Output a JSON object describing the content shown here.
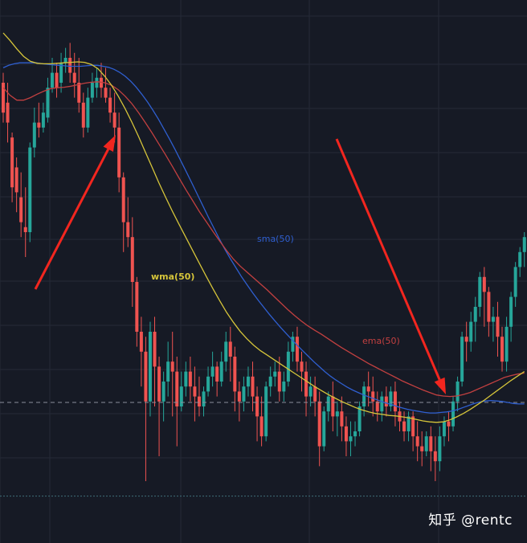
{
  "chart_data": {
    "type": "candlestick",
    "title": "",
    "xlabel": "",
    "ylabel": "",
    "ylim": [
      0,
      100
    ],
    "grid": true,
    "reference_line": 20.8,
    "bottom_line": 2.0,
    "colors": {
      "background": "#161a25",
      "grid": "#252a37",
      "up": "#26a69a",
      "down": "#ef5350",
      "sma": "#2f5fd0",
      "ema": "#c24040",
      "wma": "#d6c53a",
      "arrow": "#f2261f"
    },
    "candles": [
      [
        85,
        87,
        79,
        77
      ],
      [
        81,
        85,
        77,
        73
      ],
      [
        74,
        75,
        64,
        61
      ],
      [
        68,
        70,
        63,
        59
      ],
      [
        62,
        67,
        57,
        54
      ],
      [
        56,
        64,
        55,
        50
      ],
      [
        55,
        73,
        72,
        53
      ],
      [
        72,
        80,
        77,
        70
      ],
      [
        77,
        81,
        76,
        74
      ],
      [
        76,
        81,
        79,
        75
      ],
      [
        78,
        86,
        84,
        77
      ],
      [
        84,
        90,
        87,
        83
      ],
      [
        87,
        89,
        84,
        82
      ],
      [
        85,
        91,
        89,
        83
      ],
      [
        89,
        92,
        90,
        87
      ],
      [
        90,
        93,
        87,
        85
      ],
      [
        87,
        91,
        85,
        82
      ],
      [
        85,
        90,
        81,
        79
      ],
      [
        81,
        83,
        76,
        74
      ],
      [
        76,
        84,
        82,
        75
      ],
      [
        82,
        87,
        85,
        81
      ],
      [
        84,
        88,
        86,
        82
      ],
      [
        86,
        89,
        84,
        82
      ],
      [
        84,
        88,
        82,
        81
      ],
      [
        82,
        84,
        79,
        77
      ],
      [
        79,
        83,
        76,
        73
      ],
      [
        76,
        79,
        66,
        63
      ],
      [
        66,
        67,
        57,
        51
      ],
      [
        57,
        62,
        54,
        52
      ],
      [
        54,
        58,
        45,
        40
      ],
      [
        45,
        46,
        35,
        32
      ],
      [
        35,
        38,
        31,
        24
      ],
      [
        31,
        34,
        21,
        5
      ],
      [
        21,
        37,
        35,
        18
      ],
      [
        35,
        38,
        28,
        20
      ],
      [
        28,
        30,
        21,
        10
      ],
      [
        21,
        27,
        25,
        17
      ],
      [
        25,
        33,
        29,
        22
      ],
      [
        29,
        35,
        27,
        18
      ],
      [
        27,
        30,
        20,
        12
      ],
      [
        20,
        27,
        24,
        19
      ],
      [
        24,
        29,
        27,
        22
      ],
      [
        27,
        30,
        24,
        21
      ],
      [
        24,
        28,
        22,
        17
      ],
      [
        22,
        26,
        20,
        18
      ],
      [
        20,
        24,
        23,
        18
      ],
      [
        23,
        28,
        26,
        22
      ],
      [
        26,
        31,
        28,
        24
      ],
      [
        28,
        29,
        25,
        22
      ],
      [
        25,
        31,
        29,
        24
      ],
      [
        29,
        35,
        33,
        27
      ],
      [
        33,
        36,
        30,
        25
      ],
      [
        30,
        32,
        23,
        19
      ],
      [
        23,
        25,
        21,
        17
      ],
      [
        21,
        26,
        24,
        19
      ],
      [
        24,
        28,
        26,
        22
      ],
      [
        26,
        29,
        22,
        19
      ],
      [
        22,
        24,
        18,
        13
      ],
      [
        18,
        22,
        14,
        12
      ],
      [
        14,
        25,
        24,
        13
      ],
      [
        24,
        28,
        26,
        22
      ],
      [
        26,
        29,
        27,
        24
      ],
      [
        27,
        30,
        23,
        21
      ],
      [
        23,
        27,
        25,
        21
      ],
      [
        25,
        33,
        31,
        24
      ],
      [
        31,
        35,
        34,
        29
      ],
      [
        34,
        36,
        29,
        27
      ],
      [
        29,
        31,
        27,
        23
      ],
      [
        27,
        29,
        22,
        18
      ],
      [
        22,
        26,
        24,
        20
      ],
      [
        24,
        26,
        21,
        18
      ],
      [
        21,
        23,
        12,
        8
      ],
      [
        12,
        20,
        19,
        11
      ],
      [
        19,
        23,
        22,
        17
      ],
      [
        22,
        25,
        18,
        15
      ],
      [
        18,
        21,
        19,
        14
      ],
      [
        19,
        22,
        16,
        13
      ],
      [
        16,
        18,
        13,
        10
      ],
      [
        13,
        17,
        14,
        10
      ],
      [
        14,
        17,
        15,
        12
      ],
      [
        15,
        21,
        20,
        14
      ],
      [
        20,
        25,
        24,
        18
      ],
      [
        24,
        27,
        23,
        20
      ],
      [
        23,
        26,
        21,
        18
      ],
      [
        21,
        23,
        19,
        17
      ],
      [
        19,
        23,
        22,
        17
      ],
      [
        22,
        24,
        20,
        18
      ],
      [
        20,
        24,
        23,
        19
      ],
      [
        23,
        25,
        19,
        16
      ],
      [
        19,
        21,
        17,
        15
      ],
      [
        17,
        19,
        15,
        13
      ],
      [
        15,
        19,
        18,
        13
      ],
      [
        18,
        19,
        14,
        11
      ],
      [
        14,
        17,
        12,
        9
      ],
      [
        12,
        15,
        11,
        8
      ],
      [
        11,
        15,
        14,
        10
      ],
      [
        14,
        16,
        11,
        7
      ],
      [
        11,
        14,
        9,
        5
      ],
      [
        9,
        16,
        14,
        7
      ],
      [
        14,
        18,
        17,
        12
      ],
      [
        17,
        19,
        16,
        13
      ],
      [
        16,
        22,
        21,
        15
      ],
      [
        21,
        26,
        25,
        19
      ],
      [
        25,
        35,
        34,
        24
      ],
      [
        34,
        37,
        33,
        29
      ],
      [
        33,
        39,
        37,
        31
      ],
      [
        37,
        42,
        40,
        33
      ],
      [
        40,
        47,
        46,
        38
      ],
      [
        46,
        48,
        43,
        36
      ],
      [
        43,
        44,
        37,
        34
      ],
      [
        37,
        40,
        38,
        33
      ],
      [
        38,
        41,
        34,
        30
      ],
      [
        34,
        36,
        29,
        27
      ],
      [
        29,
        38,
        36,
        27
      ],
      [
        36,
        43,
        42,
        33
      ],
      [
        42,
        49,
        48,
        40
      ],
      [
        48,
        52,
        51,
        46
      ],
      [
        51,
        55,
        54,
        48
      ]
    ],
    "series": [
      {
        "label": "sma(50)",
        "values": [
          88,
          88.5,
          88.8,
          89,
          89,
          89,
          89,
          88.8,
          88.7,
          88.6,
          88.5,
          88.4,
          88.3,
          88.3,
          88.3,
          88.4,
          88.5,
          88.5,
          88.3,
          88.1,
          87.7,
          87.1,
          86.3,
          85.3,
          84.1,
          82.7,
          81.2,
          79.5,
          77.7,
          75.7,
          73.7,
          71.6,
          69.4,
          67.2,
          64.9,
          62.6,
          60.3,
          58,
          55.8,
          53.6,
          51.5,
          49.6,
          47.8,
          46,
          44.4,
          42.8,
          41.3,
          39.9,
          38.5,
          37.2,
          35.9,
          34.7,
          33.5,
          32.3,
          31.2,
          30.1,
          29,
          28,
          27,
          26.1,
          25.3,
          24.6,
          23.9,
          23.3,
          22.8,
          22.3,
          21.9,
          21.5,
          21.1,
          20.7,
          20.4,
          20,
          19.7,
          19.4,
          19.2,
          19,
          18.8,
          18.7,
          18.7,
          18.8,
          18.9,
          19.1,
          19.4,
          19.8,
          20.2,
          20.6,
          20.9,
          21.1,
          21.2,
          21.1,
          21,
          20.8,
          20.6,
          20.5,
          20.5
        ],
        "x": [
          0,
          2,
          3,
          5,
          6,
          8,
          9,
          11,
          12,
          14,
          15,
          17,
          18,
          20,
          21,
          23,
          24,
          26,
          27,
          29,
          30,
          32,
          33,
          35,
          36,
          38,
          39,
          41,
          42,
          44,
          45,
          47,
          48,
          50,
          51,
          53,
          54,
          56,
          57,
          59,
          60,
          62,
          63,
          65,
          66,
          68,
          69,
          71,
          72,
          74,
          75,
          77,
          78,
          80,
          81,
          83,
          84,
          86,
          87,
          89,
          90,
          92,
          93,
          95,
          96,
          98,
          99,
          100,
          101,
          102,
          103,
          104,
          105,
          106,
          107,
          108,
          109,
          110,
          111,
          112,
          113,
          114,
          115,
          115,
          115,
          115,
          115,
          115,
          115,
          115,
          115,
          115,
          115,
          115,
          115
        ]
      },
      {
        "label": "ema(50)",
        "values": [
          84,
          82.5,
          81.5,
          81.5,
          82,
          82.7,
          83.3,
          83.8,
          84,
          84.1,
          84.3,
          84.6,
          84.9,
          85.1,
          85.2,
          85,
          84.5,
          83.6,
          82.3,
          80.8,
          79,
          77,
          74.9,
          72.7,
          70.5,
          68.2,
          65.8,
          63.5,
          61.3,
          59.1,
          57.1,
          55.1,
          53.2,
          51.3,
          49.6,
          48.2,
          47,
          45.8,
          44.6,
          43.4,
          42.1,
          40.8,
          39.5,
          38.3,
          37.2,
          36.2,
          35.3,
          34.5,
          33.6,
          32.7,
          31.8,
          31,
          30.2,
          29.4,
          28.6,
          27.9,
          27.2,
          26.5,
          25.8,
          25.1,
          24.5,
          23.9,
          23.3,
          22.8,
          22.3,
          22.1,
          22,
          22.1,
          22.4,
          22.8,
          23.4,
          24,
          24.6,
          25.2,
          25.8,
          26.2,
          26.5,
          26.7
        ]
      },
      {
        "label": "wma(50)",
        "values": [
          95,
          93.5,
          91.8,
          90.3,
          89.3,
          88.9,
          88.8,
          88.8,
          88.9,
          89,
          89.1,
          89.2,
          89.1,
          88.7,
          87.8,
          86.3,
          84.5,
          82.3,
          79.8,
          77.1,
          74.2,
          71.1,
          68,
          64.9,
          62,
          59.2,
          56.5,
          53.9,
          51.3,
          48.7,
          46.1,
          43.6,
          41.2,
          38.9,
          36.9,
          35.1,
          33.6,
          32.3,
          31.2,
          30.3,
          29.4,
          28.5,
          27.6,
          26.7,
          25.8,
          24.9,
          24,
          23.2,
          22.4,
          21.7,
          21,
          20.4,
          19.8,
          19.3,
          18.9,
          18.6,
          18.4,
          18.2,
          18.1,
          17.9,
          17.7,
          17.4,
          17.1,
          16.9,
          16.8,
          16.9,
          17.3,
          17.9,
          18.6,
          19.4,
          20.3,
          21.2,
          22.2,
          23.2,
          24.2,
          25.2,
          26.1,
          27
        ]
      }
    ],
    "annotations": [
      {
        "text": "sma(50)",
        "x": 320,
        "y": 301
      },
      {
        "text": "wma(50)",
        "x": 188,
        "y": 348
      },
      {
        "text": "ema(50)",
        "x": 451,
        "y": 428
      }
    ],
    "arrows": [
      {
        "from": [
          44,
          360
        ],
        "to": [
          144,
          168
        ]
      },
      {
        "from": [
          419,
          173
        ],
        "to": [
          555,
          491
        ]
      }
    ]
  },
  "watermark": "知乎 @rentc"
}
